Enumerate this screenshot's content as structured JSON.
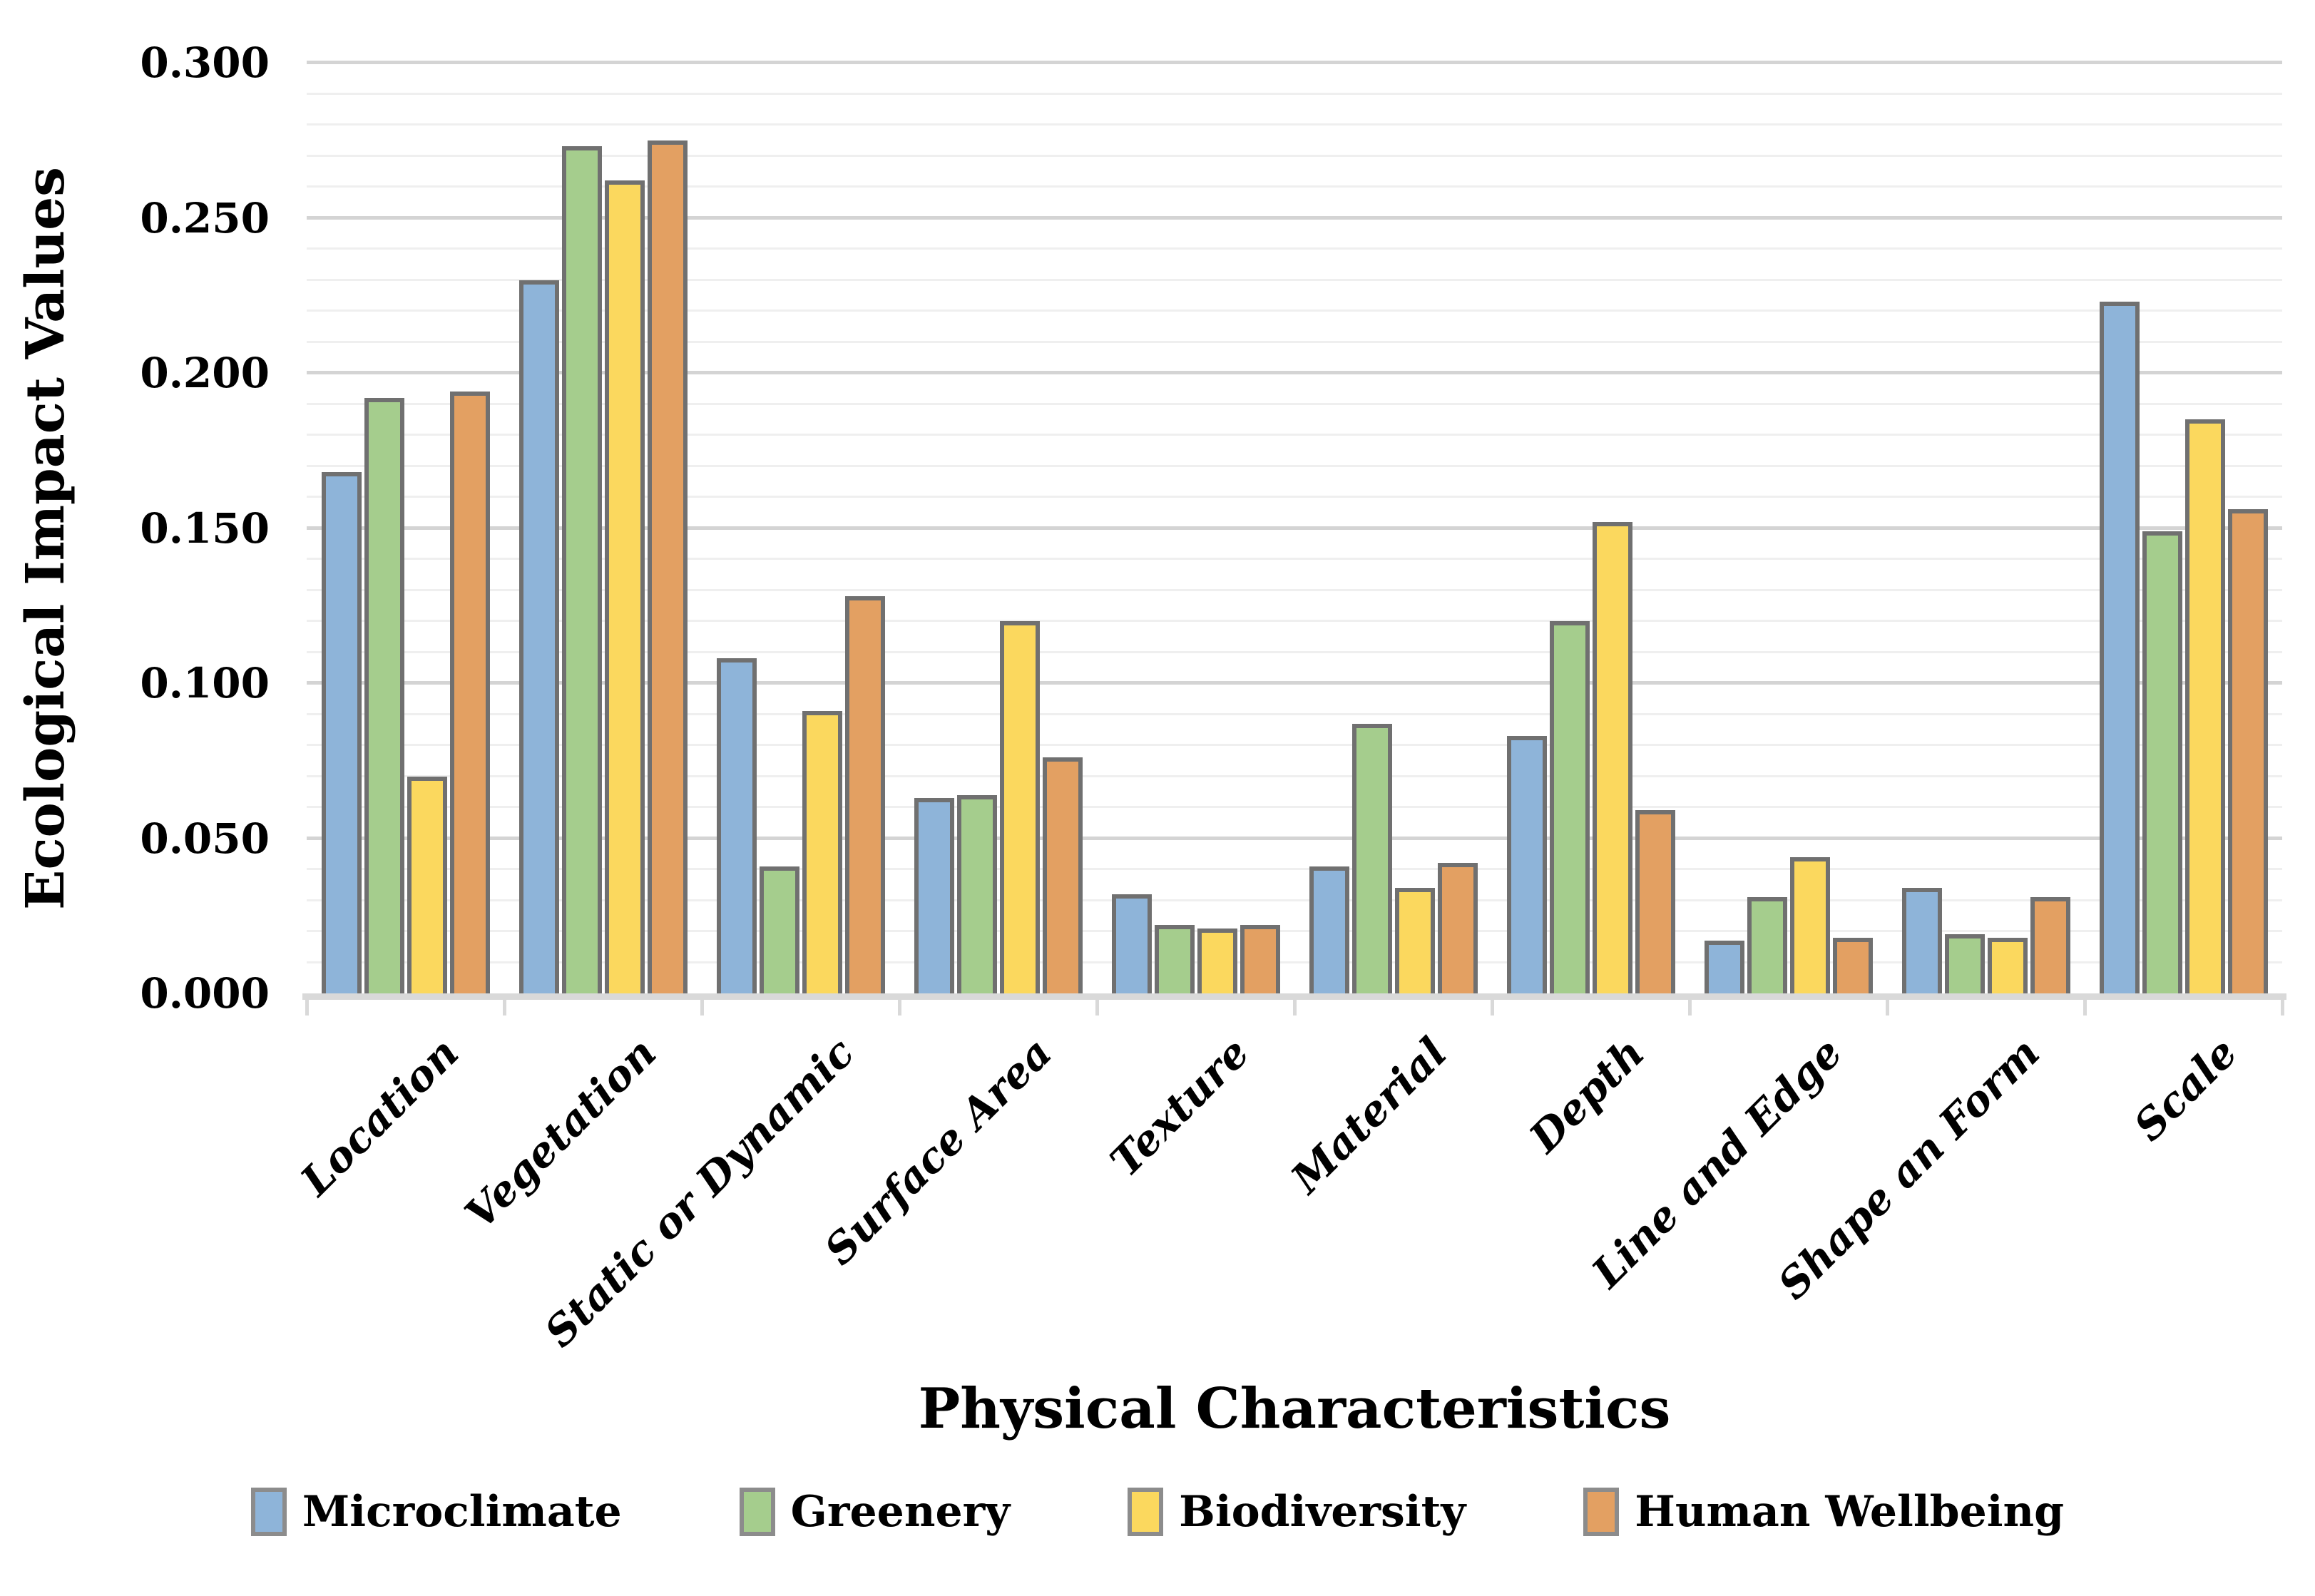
{
  "chart_data": {
    "type": "bar",
    "title": "",
    "xlabel": "Physical Characteristics",
    "ylabel": "Ecological Impact Values",
    "ylim": [
      0.0,
      0.3
    ],
    "ytick_step": 0.05,
    "minor_grid_step": 0.01,
    "grid": true,
    "legend_position": "bottom",
    "ytick_labels": [
      "0.000",
      "0.050",
      "0.100",
      "0.150",
      "0.200",
      "0.250",
      "0.300"
    ],
    "categories": [
      "Location",
      "Vegetation",
      "Static or Dynamic",
      "Surface Area",
      "Texture",
      "Material",
      "Depth",
      "Line and Edge",
      "Shape an Form",
      "Scale"
    ],
    "series": [
      {
        "name": "Microclimate",
        "color": "#8EB4D9",
        "values": [
          0.168,
          0.23,
          0.108,
          0.063,
          0.032,
          0.041,
          0.083,
          0.017,
          0.034,
          0.223
        ]
      },
      {
        "name": "Greenery",
        "color": "#A5CD8D",
        "values": [
          0.192,
          0.273,
          0.041,
          0.064,
          0.022,
          0.087,
          0.12,
          0.031,
          0.019,
          0.149
        ]
      },
      {
        "name": "Biodiversity",
        "color": "#FBD85E",
        "values": [
          0.07,
          0.262,
          0.091,
          0.12,
          0.021,
          0.034,
          0.152,
          0.044,
          0.018,
          0.185
        ]
      },
      {
        "name": "Human Wellbeing",
        "color": "#E3A062",
        "values": [
          0.194,
          0.275,
          0.128,
          0.076,
          0.022,
          0.042,
          0.059,
          0.018,
          0.031,
          0.156
        ]
      }
    ],
    "colors": {
      "bar_border": "#707070",
      "axis_line": "#D9D9D9",
      "major_grid": "#D4D4D4",
      "minor_grid": "#EFEFEF"
    }
  }
}
